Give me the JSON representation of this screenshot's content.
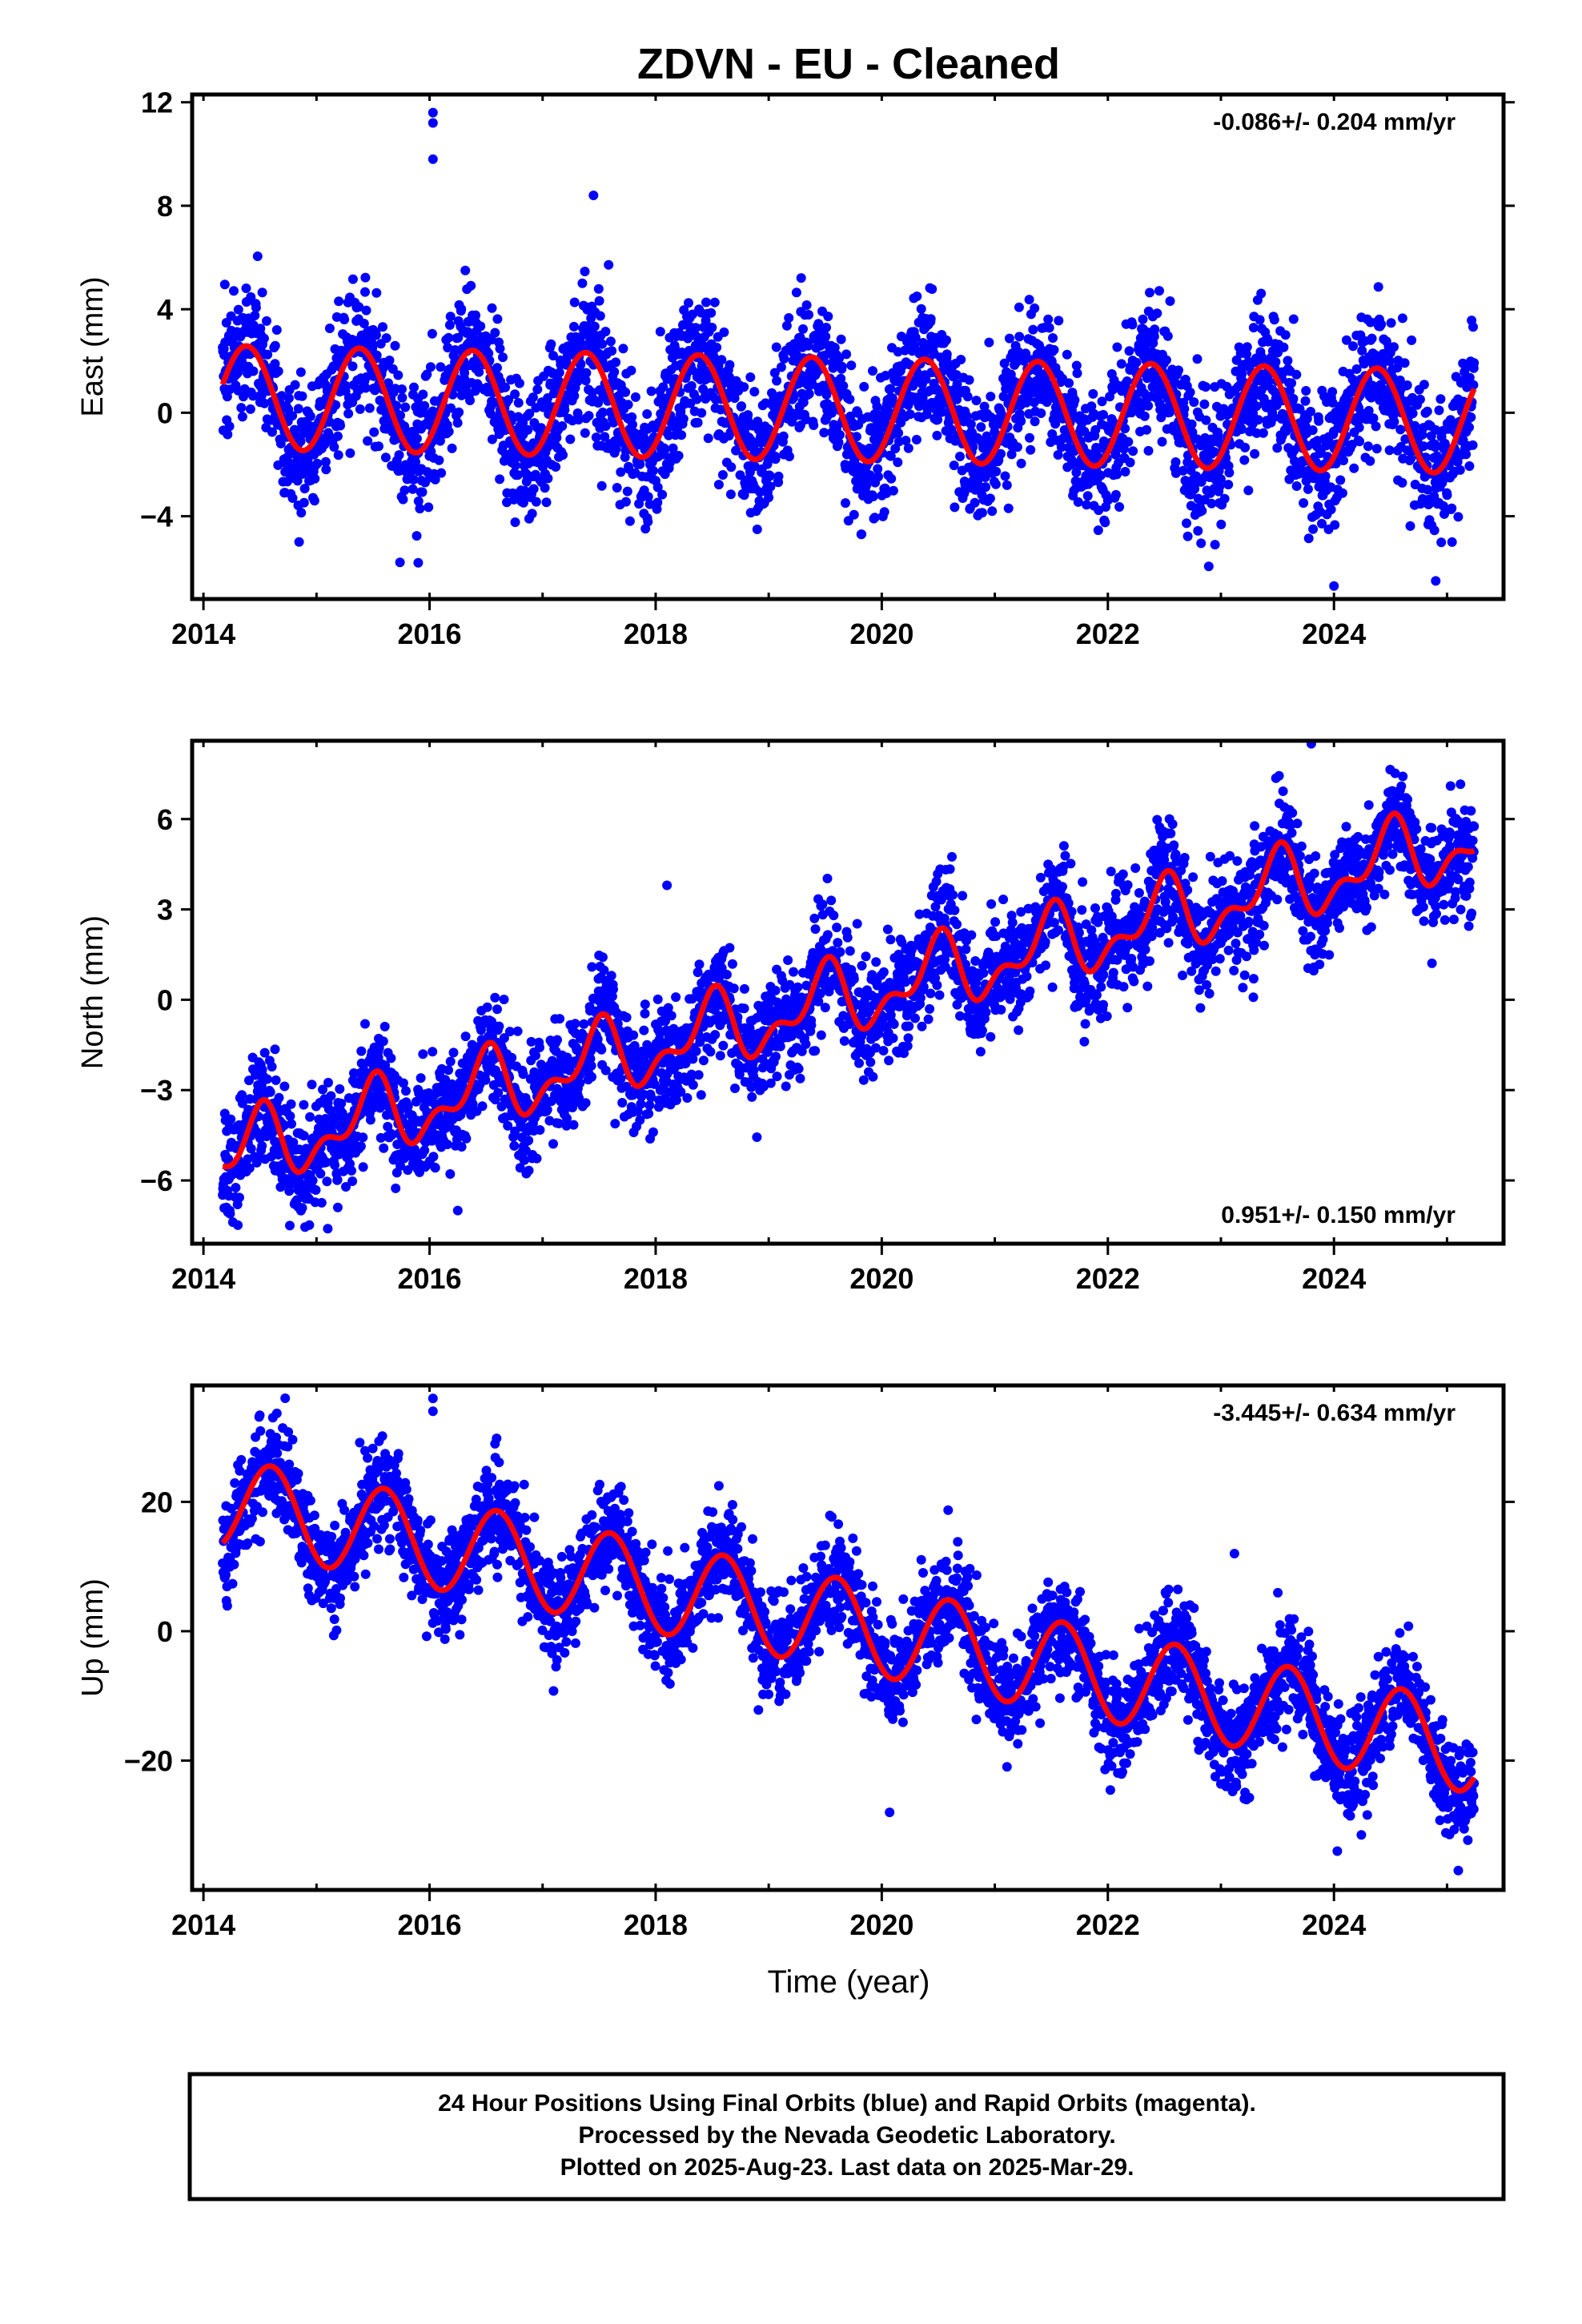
{
  "title": "ZDVN  - EU - Cleaned",
  "x_axis_label": "Time (year)",
  "footer": {
    "lines": [
      "24 Hour Positions Using Final Orbits (blue) and Rapid Orbits (magenta).",
      "Processed by the Nevada Geodetic Laboratory.",
      "Plotted on 2025-Aug-23. Last data on 2025-Mar-29."
    ]
  },
  "colors": {
    "points": "#0000ff",
    "fit": "#ff0000",
    "frame": "#000000"
  },
  "chart_data": [
    {
      "type": "scatter",
      "component": "east",
      "ylabel": "East (mm)",
      "rate_text": "-0.086+/- 0.204 mm/yr",
      "rate_position": "top-right",
      "xlim": [
        2013.9,
        2025.5
      ],
      "ylim": [
        -7.2,
        12.3
      ],
      "x_ticks": [
        2014,
        2016,
        2018,
        2020,
        2022,
        2024
      ],
      "y_ticks": [
        -4,
        0,
        4,
        8,
        12
      ],
      "fit": {
        "kind": "linear-plus-seasonal",
        "t0": 2014.17,
        "start": 2014.17,
        "end": 2025.24,
        "offset": 0.6,
        "rate": -0.086,
        "annual_amp": 2.0,
        "annual_peak": 0.38,
        "semiannual_amp": 0.0,
        "semiannual_peak": 0.0
      },
      "scatter_sigma": 1.3,
      "outliers": [
        {
          "x": 2016.03,
          "y": 11.6
        },
        {
          "x": 2016.03,
          "y": 11.2
        },
        {
          "x": 2016.03,
          "y": 9.8
        },
        {
          "x": 2017.45,
          "y": 8.4
        },
        {
          "x": 2015.9,
          "y": -5.8
        },
        {
          "x": 2024.0,
          "y": -6.7
        },
        {
          "x": 2024.9,
          "y": -6.5
        }
      ]
    },
    {
      "type": "scatter",
      "component": "north",
      "ylabel": "North (mm)",
      "rate_text": "0.951+/- 0.150 mm/yr",
      "rate_position": "bottom-right",
      "xlim": [
        2013.9,
        2025.5
      ],
      "ylim": [
        -8.1,
        8.6
      ],
      "x_ticks": [
        2014,
        2016,
        2018,
        2020,
        2022,
        2024
      ],
      "y_ticks": [
        -6,
        -3,
        0,
        3,
        6
      ],
      "fit": {
        "kind": "linear-plus-seasonal",
        "t0": 2014.17,
        "start": 2014.17,
        "end": 2025.24,
        "offset": -5.2,
        "rate": 0.951,
        "annual_amp": 1.0,
        "annual_peak": 0.48,
        "semiannual_amp": 0.6,
        "semiannual_peak": 0.05
      },
      "scatter_sigma": 0.9,
      "outliers": [
        {
          "x": 2018.1,
          "y": 3.8
        },
        {
          "x": 2015.1,
          "y": -7.6
        },
        {
          "x": 2016.25,
          "y": -7.0
        },
        {
          "x": 2023.8,
          "y": 8.5
        }
      ]
    },
    {
      "type": "scatter",
      "component": "up",
      "ylabel": "Up (mm)",
      "rate_text": "-3.445+/- 0.634 mm/yr",
      "rate_position": "top-right",
      "xlim": [
        2013.9,
        2025.5
      ],
      "ylim": [
        -40,
        38
      ],
      "x_ticks": [
        2014,
        2016,
        2018,
        2020,
        2022,
        2024
      ],
      "y_ticks": [
        -20,
        0,
        20
      ],
      "fit": {
        "kind": "linear-plus-seasonal",
        "t0": 2014.17,
        "start": 2014.17,
        "end": 2025.24,
        "offset": 20.0,
        "rate": -3.445,
        "annual_amp": 7.0,
        "annual_peak": 0.6,
        "semiannual_amp": 0.0,
        "semiannual_peak": 0.0
      },
      "scatter_sigma": 4.0,
      "outliers": [
        {
          "x": 2016.03,
          "y": 36
        },
        {
          "x": 2016.03,
          "y": 34
        },
        {
          "x": 2020.07,
          "y": -28
        },
        {
          "x": 2024.03,
          "y": -34
        },
        {
          "x": 2025.1,
          "y": -37
        },
        {
          "x": 2023.12,
          "y": 12
        }
      ]
    }
  ]
}
